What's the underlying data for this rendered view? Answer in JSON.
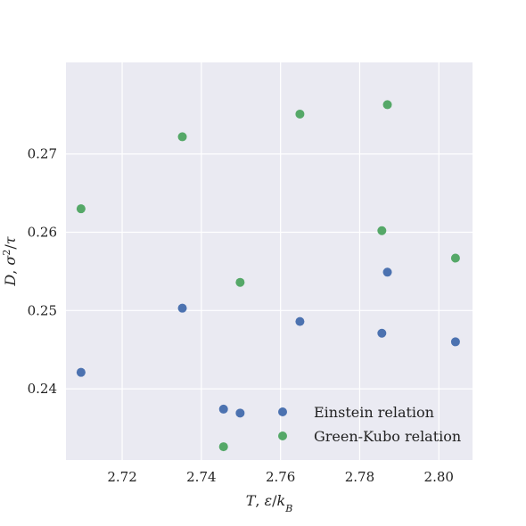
{
  "chart_data": {
    "type": "scatter",
    "title": "",
    "xlabel": "T, ε/k_B",
    "ylabel": "D, σ²/τ",
    "xlim": [
      2.7058,
      2.8085
    ],
    "ylim": [
      0.2309,
      0.2817
    ],
    "xticks": [
      2.72,
      2.74,
      2.76,
      2.78,
      2.8
    ],
    "xtick_labels": [
      "2.72",
      "2.74",
      "2.76",
      "2.78",
      "2.80"
    ],
    "yticks": [
      0.24,
      0.25,
      0.26,
      0.27
    ],
    "ytick_labels": [
      "0.24",
      "0.25",
      "0.26",
      "0.27"
    ],
    "grid": true,
    "legend_position": "bottom-right",
    "colors": {
      "plot_bg": "#EAEAF2",
      "grid": "#FFFFFF"
    },
    "series": [
      {
        "name": "Einstein relation",
        "color": "#4C72B0",
        "x": [
          2.7096,
          2.7352,
          2.7456,
          2.7498,
          2.7649,
          2.7856,
          2.787,
          2.8042
        ],
        "y": [
          0.2421,
          0.2503,
          0.2374,
          0.2369,
          0.2486,
          0.2471,
          0.2549,
          0.246
        ]
      },
      {
        "name": "Green-Kubo relation",
        "color": "#55A868",
        "x": [
          2.7096,
          2.7352,
          2.7456,
          2.7498,
          2.7649,
          2.7856,
          2.787,
          2.8042
        ],
        "y": [
          0.263,
          0.2722,
          0.2326,
          0.2536,
          0.2751,
          0.2602,
          0.2763,
          0.2567
        ]
      }
    ]
  }
}
